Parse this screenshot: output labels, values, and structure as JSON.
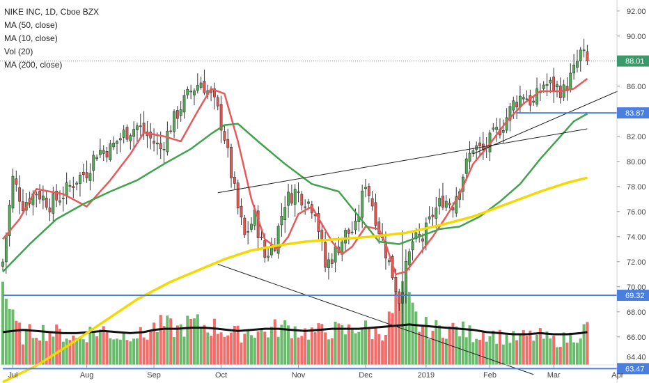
{
  "legend": {
    "title": "NIKE INC, 1D, Cboe BZX",
    "ma50": "MA (50, close)",
    "ma10": "MA (10, close)",
    "vol": "Vol (20)",
    "ma200": "MA (200, close)"
  },
  "colors": {
    "up": "#4caf50",
    "down": "#ef5350",
    "ma10": "#e65a5a",
    "ma50": "#3fa34d",
    "ma200": "#f5d800",
    "vol_ma": "#111111",
    "hline": "#4a7fe0",
    "trend": "#222222",
    "last_price": "#3a9a6a"
  },
  "chart_data": {
    "type": "candlestick",
    "symbol": "NIKE INC",
    "interval": "1D",
    "exchange": "Cboe BZX",
    "x_ticks": [
      "Jul",
      "Aug",
      "Sep",
      "Oct",
      "Nov",
      "Dec",
      "2019",
      "Feb",
      "Mar",
      "Apr"
    ],
    "y_ticks": [
      66,
      68,
      70,
      72,
      74,
      76,
      78,
      80,
      82,
      84,
      86,
      88,
      90,
      92
    ],
    "ylim": [
      62.6,
      92.6
    ],
    "grid": false,
    "price_tags": [
      {
        "label": "88.01",
        "value": 88.01,
        "kind": "last"
      },
      {
        "label": "83.87",
        "value": 83.87,
        "kind": "line"
      },
      {
        "label": "69.32",
        "value": 69.32,
        "kind": "line"
      },
      {
        "label": "64.40",
        "value": 64.4,
        "kind": "plain"
      },
      {
        "label": "63.47",
        "value": 63.47,
        "kind": "line"
      }
    ],
    "horizontal_lines": [
      {
        "value": 69.32,
        "from_day": 0,
        "to_day": 173
      },
      {
        "value": 83.87,
        "from_day": 153,
        "to_day": 173
      },
      {
        "value": 63.47,
        "from_day": 0,
        "to_day": 173
      }
    ],
    "trend_lines": [
      {
        "from": [
          64,
          77.5
        ],
        "to": [
          174,
          82.6
        ]
      },
      {
        "from": [
          140,
          80.6
        ],
        "to": [
          183,
          85.6
        ]
      },
      {
        "from": [
          64,
          71.8
        ],
        "to": [
          158,
          63.0
        ]
      }
    ],
    "day_range": [
      0,
      182
    ],
    "month_start_days": [
      3,
      25,
      45,
      65,
      88,
      108,
      126,
      145,
      164,
      183
    ],
    "moving_averages": [
      {
        "name": "MA (10, close)",
        "color_key": "ma10",
        "days": [
          0,
          5,
          10,
          18,
          25,
          32,
          38,
          42,
          48,
          53,
          58,
          62,
          66,
          70,
          74,
          78,
          82,
          85,
          88,
          92,
          95,
          98,
          101,
          104,
          108,
          112,
          114,
          117,
          120,
          124,
          128,
          132,
          136,
          140,
          145,
          150,
          155,
          160,
          166,
          170,
          174
        ],
        "values": [
          73.8,
          75.4,
          77.8,
          77.4,
          76.4,
          78.5,
          80.6,
          82.3,
          82.0,
          81.6,
          84.0,
          85.8,
          85.4,
          81.6,
          77.0,
          73.8,
          73.0,
          74.0,
          75.8,
          76.4,
          75.0,
          73.6,
          72.6,
          73.2,
          74.8,
          74.6,
          73.4,
          71.0,
          71.2,
          72.6,
          74.0,
          75.6,
          77.4,
          79.8,
          81.4,
          83.2,
          84.6,
          85.6,
          85.6,
          85.8,
          86.6
        ]
      },
      {
        "name": "MA (50, close)",
        "color_key": "ma50",
        "days": [
          0,
          8,
          16,
          24,
          32,
          40,
          48,
          56,
          62,
          66,
          70,
          76,
          84,
          92,
          100,
          106,
          112,
          118,
          124,
          130,
          136,
          142,
          148,
          154,
          160,
          166,
          170,
          174
        ],
        "values": [
          71.2,
          73.4,
          75.4,
          76.6,
          77.6,
          78.5,
          79.8,
          81.0,
          82.2,
          82.9,
          83.0,
          81.6,
          79.8,
          78.2,
          77.6,
          75.6,
          73.6,
          73.4,
          74.0,
          74.6,
          74.8,
          75.6,
          76.8,
          78.2,
          80.2,
          82.0,
          83.2,
          83.8
        ]
      },
      {
        "name": "MA (200, close)",
        "color_key": "ma200",
        "days": [
          0,
          10,
          20,
          30,
          40,
          50,
          58,
          66,
          74,
          82,
          90,
          100,
          110,
          120,
          130,
          140,
          150,
          160,
          168,
          174
        ],
        "values": [
          62.4,
          63.7,
          65.4,
          67.2,
          69.0,
          70.4,
          71.3,
          72.2,
          72.9,
          73.3,
          73.6,
          73.8,
          74.0,
          74.3,
          74.9,
          75.6,
          76.6,
          77.6,
          78.3,
          78.7
        ]
      }
    ],
    "candle_anchors": {
      "days": [
        0,
        3,
        6,
        10,
        14,
        18,
        22,
        25,
        28,
        32,
        36,
        40,
        44,
        47,
        50,
        53,
        56,
        59,
        62,
        64,
        66,
        68,
        70,
        72,
        75,
        78,
        81,
        84,
        87,
        90,
        93,
        96,
        99,
        102,
        105,
        108,
        110,
        112,
        114,
        116,
        118,
        120,
        122,
        125,
        128,
        131,
        134,
        137,
        140,
        143,
        146,
        149,
        152,
        155,
        158,
        161,
        164,
        167,
        170,
        172,
        174
      ],
      "closes": [
        72.0,
        78.6,
        76.6,
        77.6,
        76.6,
        77.4,
        78.6,
        79.2,
        80.8,
        81.0,
        82.2,
        82.8,
        81.8,
        81.0,
        82.8,
        84.4,
        85.6,
        86.4,
        85.2,
        84.0,
        82.0,
        79.0,
        76.2,
        74.0,
        75.6,
        72.4,
        73.6,
        76.8,
        77.6,
        77.0,
        76.2,
        71.6,
        72.8,
        74.2,
        74.6,
        78.4,
        76.6,
        74.6,
        72.8,
        71.0,
        69.0,
        71.4,
        73.6,
        73.8,
        75.8,
        77.0,
        76.6,
        79.0,
        81.2,
        80.8,
        82.0,
        83.0,
        84.6,
        85.4,
        84.6,
        86.2,
        86.0,
        85.6,
        87.2,
        88.6,
        88.0
      ]
    },
    "volume_anchors": {
      "days": [
        0,
        3,
        6,
        10,
        14,
        18,
        22,
        26,
        30,
        34,
        38,
        42,
        45,
        48,
        52,
        56,
        60,
        64,
        67,
        70,
        74,
        78,
        82,
        86,
        90,
        94,
        98,
        102,
        106,
        110,
        114,
        118,
        121,
        124,
        128,
        132,
        136,
        140,
        144,
        148,
        152,
        156,
        160,
        164,
        168,
        172,
        174
      ],
      "values": [
        7.6,
        4.0,
        2.6,
        3.2,
        3.0,
        2.8,
        2.4,
        3.0,
        3.2,
        2.6,
        3.0,
        2.6,
        3.4,
        3.6,
        3.2,
        3.8,
        3.6,
        3.4,
        3.0,
        2.8,
        3.2,
        3.0,
        3.4,
        3.4,
        3.0,
        3.0,
        3.2,
        3.0,
        3.6,
        3.0,
        3.2,
        6.4,
        5.4,
        3.6,
        3.2,
        3.4,
        3.2,
        2.8,
        3.0,
        2.6,
        2.4,
        2.6,
        2.6,
        2.2,
        2.4,
        3.0,
        3.4
      ],
      "vol_ma_values": [
        3.0,
        3.1,
        3.2,
        3.1,
        3.0,
        2.9,
        2.9,
        3.0,
        3.1,
        3.0,
        2.9,
        3.0,
        3.2,
        3.3,
        3.3,
        3.4,
        3.4,
        3.3,
        3.2,
        3.1,
        3.2,
        3.3,
        3.3,
        3.2,
        3.1,
        3.2,
        3.3,
        3.3,
        3.3,
        3.4,
        3.5,
        3.6,
        3.7,
        3.6,
        3.5,
        3.4,
        3.3,
        3.2,
        3.0,
        2.9,
        2.8,
        2.8,
        2.9,
        2.8,
        2.8,
        2.9,
        3.0
      ],
      "max_scale": 8.4
    }
  }
}
